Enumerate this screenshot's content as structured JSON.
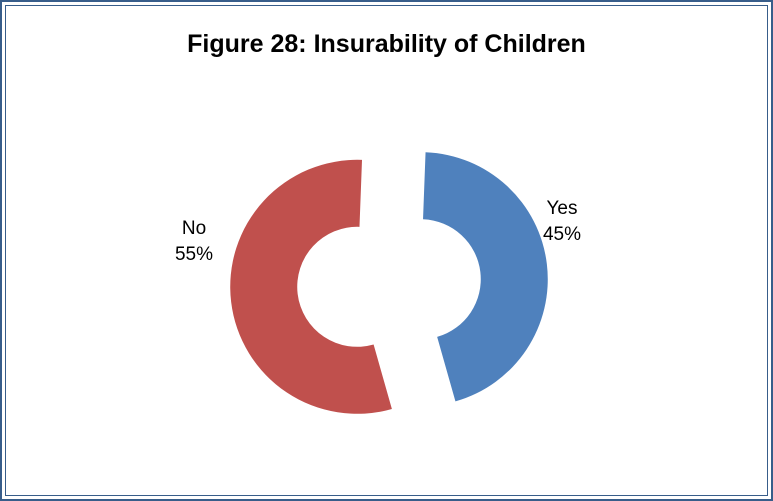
{
  "chart_data": {
    "type": "pie",
    "style": "doughnut-exploded",
    "title": "Figure 28: Insurability of Children",
    "categories": [
      "Yes",
      "No"
    ],
    "values": [
      45,
      55
    ],
    "percent_labels": [
      "45%",
      "55%"
    ],
    "colors": [
      "#4F81BD",
      "#C0504D"
    ],
    "legend": "none",
    "data_labels": "category and percent, outside"
  }
}
